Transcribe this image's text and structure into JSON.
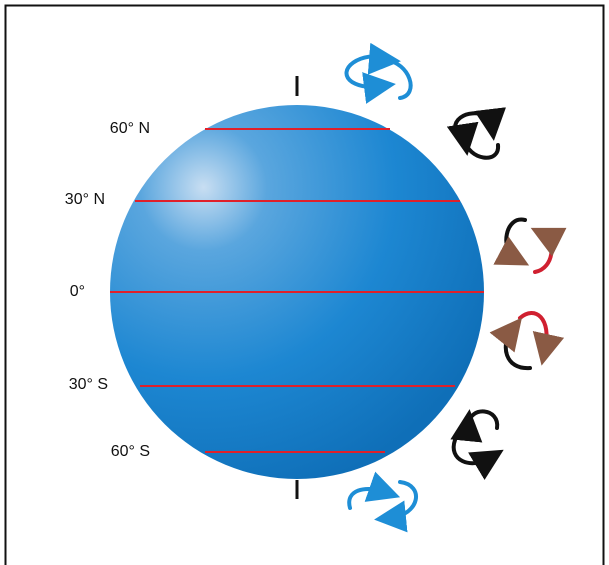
{
  "latitudes": [
    {
      "label": "60° N"
    },
    {
      "label": "30° N"
    },
    {
      "label": "0°"
    },
    {
      "label": "30° S"
    },
    {
      "label": "60° S"
    }
  ]
}
